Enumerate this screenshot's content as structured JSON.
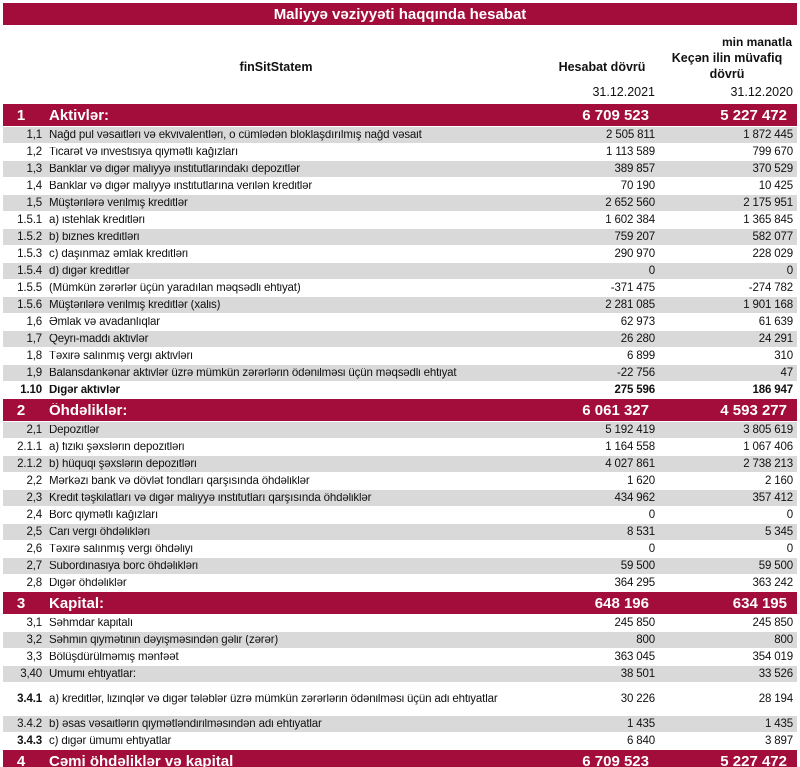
{
  "title": "Maliyyə vəziyyəti haqqında hesabat",
  "unit_label": "min manatla",
  "header": {
    "name_column": "finSitStatem",
    "current_period": "Hesabat dövrü",
    "previous_period": "Keçən ilin müvafiq dövrü",
    "current_date": "31.12.2021",
    "previous_date": "31.12.2020"
  },
  "colors": {
    "accent_maroon": "#A30D3C",
    "stripe_gray": "#D9D9D9"
  },
  "rows": [
    {
      "num": "1",
      "label": "Aktivlər:",
      "v1": "6 709 523",
      "v2": "5 227 472",
      "kind": "section"
    },
    {
      "num": "1,1",
      "label": "Nağd pul vəsaitləri və  ekvivalentləri, o cümlədən bloklaşdırılmış nağd vəsait",
      "v1": "2 505 811",
      "v2": "1 872 445",
      "shade": "gray"
    },
    {
      "num": "1,2",
      "label": "Ticarət və investisiya qiymətli kağızları",
      "v1": "1 113 589",
      "v2": "799 670",
      "shade": "white"
    },
    {
      "num": "1,3",
      "label": "Banklar və digər maliyyə institutlarındakı depozitlər",
      "v1": "389 857",
      "v2": "370 529",
      "shade": "gray"
    },
    {
      "num": "1,4",
      "label": "Banklar və digər maliyyə institutlarına verilən kreditlər",
      "v1": "70 190",
      "v2": "10 425",
      "shade": "white"
    },
    {
      "num": "1,5",
      "label": "Müştərilərə verilmiş kreditlər",
      "v1": "2 652 560",
      "v2": "2 175 951",
      "shade": "gray"
    },
    {
      "num": "1.5.1",
      "label": "a) istehlak kreditləri",
      "v1": "1 602 384",
      "v2": "1 365 845",
      "shade": "white"
    },
    {
      "num": "1.5.2",
      "label": "b) biznes kreditləri",
      "v1": "759 207",
      "v2": "582 077",
      "shade": "gray"
    },
    {
      "num": "1.5.3",
      "label": "c) daşınmaz əmlak kreditləri",
      "v1": "290 970",
      "v2": "228 029",
      "shade": "white"
    },
    {
      "num": "1.5.4",
      "label": "d) digər kreditlər",
      "v1": "0",
      "v2": "0",
      "shade": "gray"
    },
    {
      "num": "1.5.5",
      "label": "(Mümkün zərərlər üçün yaradılan məqsədli ehtiyat)",
      "v1": "-371 475",
      "v2": "-274 782",
      "shade": "white"
    },
    {
      "num": "1.5.6",
      "label": "Müştərilərə verilmiş kreditlər (xalis)",
      "v1": "2 281 085",
      "v2": "1 901 168",
      "shade": "gray"
    },
    {
      "num": "1,6",
      "label": "Əmlak və avadanlıqlar",
      "v1": "62 973",
      "v2": "61 639",
      "shade": "white"
    },
    {
      "num": "1,7",
      "label": "Qeyri-maddi aktivlər",
      "v1": "26 280",
      "v2": "24 291",
      "shade": "gray"
    },
    {
      "num": "1,8",
      "label": "Təxirə salınmış vergi aktivləri",
      "v1": "6 899",
      "v2": "310",
      "shade": "white"
    },
    {
      "num": "1,9",
      "label": "Balansdankənar aktivlər üzrə mümkün zərərlərin ödənilməsi üçün məqsədli ehtiyat",
      "v1": "-22 756",
      "v2": "47",
      "shade": "gray"
    },
    {
      "num": "1.10",
      "label": "Digər aktivlər",
      "v1": "275 596",
      "v2": "186 947",
      "shade": "white",
      "bold": true
    },
    {
      "num": "2",
      "label": "Öhdəliklər:",
      "v1": "6 061 327",
      "v2": "4 593 277",
      "kind": "section"
    },
    {
      "num": "2,1",
      "label": "Depozitlər",
      "v1": "5 192 419",
      "v2": "3 805 619",
      "shade": "gray"
    },
    {
      "num": "2.1.1",
      "label": "a) fiziki şəxslərin depozitləri",
      "v1": "1 164 558",
      "v2": "1 067 406",
      "shade": "white"
    },
    {
      "num": "2.1.2",
      "label": "b) hüquqi şəxslərin depozitləri",
      "v1": "4 027 861",
      "v2": "2 738 213",
      "shade": "gray"
    },
    {
      "num": "2,2",
      "label": "Mərkəzi bank və dövlət fondları qarşısında öhdəliklər",
      "v1": "1 620",
      "v2": "2 160",
      "shade": "white"
    },
    {
      "num": "2,3",
      "label": "Kredit təşkilatları və digər maliyyə institutları qarşısında öhdəliklər",
      "v1": "434 962",
      "v2": "357 412",
      "shade": "gray"
    },
    {
      "num": "2,4",
      "label": "Borc qiymətli kağızları",
      "v1": "0",
      "v2": "0",
      "shade": "white"
    },
    {
      "num": "2,5",
      "label": "Cari vergi öhdəlikləri",
      "v1": "8 531",
      "v2": "5 345",
      "shade": "gray"
    },
    {
      "num": "2,6",
      "label": "Təxirə salınmış vergi öhdəliyi",
      "v1": "0",
      "v2": "0",
      "shade": "white"
    },
    {
      "num": "2,7",
      "label": "Subordinasiya borc öhdəlikləri",
      "v1": "59 500",
      "v2": "59 500",
      "shade": "gray"
    },
    {
      "num": "2,8",
      "label": "Digər öhdəliklər",
      "v1": "364 295",
      "v2": "363 242",
      "shade": "white"
    },
    {
      "num": "3",
      "label": "Kapital:",
      "v1": "648 196",
      "v2": "634 195",
      "kind": "section"
    },
    {
      "num": "3,1",
      "label": "Səhmdar kapitalı",
      "v1": "245 850",
      "v2": "245 850",
      "shade": "white"
    },
    {
      "num": "3,2",
      "label": "Səhmin qiymətinin dəyişməsindən gəlir (zərər)",
      "v1": "800",
      "v2": "800",
      "shade": "gray"
    },
    {
      "num": "3,3",
      "label": "Bölüşdürülməmiş mənfəət",
      "v1": "363 045",
      "v2": "354 019",
      "shade": "white"
    },
    {
      "num": "3,40",
      "label": "Ümumi ehtiyatlar:",
      "v1": "38 501",
      "v2": "33 526",
      "shade": "gray"
    },
    {
      "num": "3.4.1",
      "label": "a) kreditlər, lizinqlər və digər tələblər üzrə mümkün zərərlərin ödənilməsi üçün adi ehtiyatlar",
      "v1": "30 226",
      "v2": "28 194",
      "shade": "white",
      "num_bold": true,
      "gap_before": true,
      "tall": true
    },
    {
      "num": "3.4.2",
      "label": "b) əsas vəsaitlərin qiymətləndirilməsindən adi ehtiyatlar",
      "v1": "1 435",
      "v2": "1 435",
      "shade": "gray",
      "gap_before": true
    },
    {
      "num": "3.4.3",
      "label": "c) digər ümumi ehtiyatlar",
      "v1": "6 840",
      "v2": "3 897",
      "shade": "white",
      "num_bold": true
    },
    {
      "num": "4",
      "label": "Cəmi öhdəliklər və kapital",
      "v1": "6 709 523",
      "v2": "5 227 472",
      "kind": "section"
    }
  ]
}
